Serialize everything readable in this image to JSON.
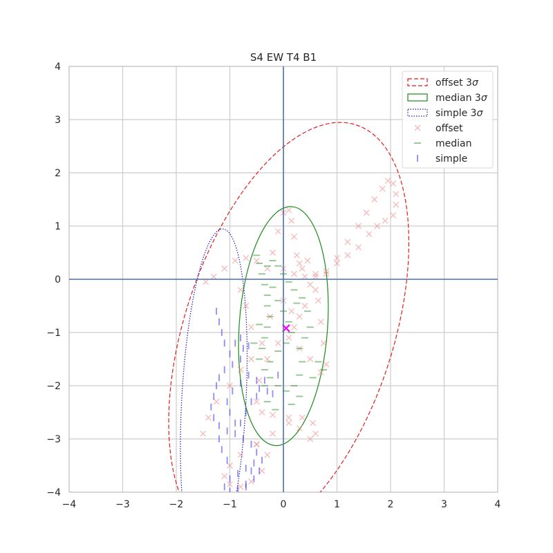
{
  "chart_data": {
    "type": "scatter",
    "title": "S4 EW T4 B1",
    "xlabel": "",
    "ylabel": "",
    "xlim": [
      -4,
      4
    ],
    "ylim": [
      -4,
      4
    ],
    "xticks": [
      -4,
      -3,
      -2,
      -1,
      0,
      1,
      2,
      3,
      4
    ],
    "yticks": [
      -4,
      -3,
      -2,
      -1,
      0,
      1,
      2,
      3,
      4
    ],
    "grid": true,
    "legend_position": "top-right",
    "axis_lines": {
      "x": 0,
      "y": 0,
      "color": "#4c72b0"
    },
    "ellipses": [
      {
        "name": "offset 3σ",
        "legend_label": "offset 3",
        "center": [
          0.1,
          -1.0
        ],
        "width": 3.9,
        "height": 8.2,
        "angle_deg": -18,
        "color": "#e41a1c",
        "style": "dashed"
      },
      {
        "name": "median 3σ",
        "legend_label": "median 3",
        "center": [
          0.0,
          -0.88
        ],
        "width": 1.65,
        "height": 4.5,
        "angle_deg": -4,
        "color": "#1a8a1a",
        "style": "solid"
      },
      {
        "name": "simple 3σ",
        "legend_label": "simple 3",
        "center": [
          -1.3,
          -2.3
        ],
        "width": 1.2,
        "height": 6.5,
        "angle_deg": -3,
        "color": "#1a1ab0",
        "style": "dotted"
      }
    ],
    "series": [
      {
        "name": "offset",
        "marker": "x",
        "color": "#f08080",
        "points": [
          [
            -1.45,
            -0.05
          ],
          [
            -1.3,
            0.05
          ],
          [
            -1.1,
            0.2
          ],
          [
            -0.9,
            0.35
          ],
          [
            -0.7,
            0.4
          ],
          [
            -0.5,
            0.35
          ],
          [
            -0.3,
            0.2
          ],
          [
            -0.2,
            0.5
          ],
          [
            -0.1,
            0.9
          ],
          [
            0.0,
            1.25
          ],
          [
            0.1,
            1.3
          ],
          [
            0.15,
            1.1
          ],
          [
            0.2,
            0.8
          ],
          [
            0.25,
            0.45
          ],
          [
            0.35,
            0.2
          ],
          [
            0.5,
            -0.1
          ],
          [
            0.65,
            -0.4
          ],
          [
            0.7,
            -0.8
          ],
          [
            0.75,
            -1.2
          ],
          [
            0.8,
            -1.6
          ],
          [
            0.7,
            -1.75
          ],
          [
            0.5,
            -1.5
          ],
          [
            0.3,
            -1.3
          ],
          [
            0.1,
            -1.1
          ],
          [
            -0.1,
            -1.2
          ],
          [
            -0.3,
            -1.5
          ],
          [
            -0.45,
            -1.9
          ],
          [
            -0.5,
            -2.3
          ],
          [
            -0.4,
            -2.5
          ],
          [
            -0.2,
            -2.55
          ],
          [
            0.1,
            -2.6
          ],
          [
            0.35,
            -2.6
          ],
          [
            0.55,
            -2.7
          ],
          [
            0.6,
            -2.9
          ],
          [
            0.5,
            -3.0
          ],
          [
            0.3,
            -2.8
          ],
          [
            0.1,
            -2.7
          ],
          [
            -0.2,
            -2.9
          ],
          [
            -0.5,
            -3.1
          ],
          [
            -0.8,
            -3.3
          ],
          [
            -1.0,
            -3.5
          ],
          [
            -1.1,
            -3.7
          ],
          [
            -1.0,
            -3.85
          ],
          [
            -0.8,
            -3.9
          ],
          [
            -0.6,
            -3.8
          ],
          [
            -0.4,
            -3.6
          ],
          [
            -0.3,
            -3.3
          ],
          [
            -0.5,
            -3.1
          ],
          [
            -1.5,
            -2.9
          ],
          [
            -1.4,
            -2.6
          ],
          [
            -1.25,
            -2.3
          ],
          [
            -1.0,
            -2.0
          ],
          [
            -0.8,
            -1.7
          ],
          [
            -0.6,
            -1.5
          ],
          [
            -0.4,
            -1.2
          ],
          [
            0.0,
            0.2
          ],
          [
            0.2,
            0.1
          ],
          [
            0.4,
            0.05
          ],
          [
            0.6,
            0.1
          ],
          [
            0.8,
            0.15
          ],
          [
            1.0,
            0.3
          ],
          [
            1.2,
            0.45
          ],
          [
            1.4,
            0.6
          ],
          [
            1.6,
            0.85
          ],
          [
            1.75,
            1.0
          ],
          [
            1.9,
            1.1
          ],
          [
            2.05,
            1.2
          ],
          [
            2.1,
            1.4
          ],
          [
            2.1,
            1.6
          ],
          [
            2.05,
            1.8
          ],
          [
            1.95,
            1.85
          ],
          [
            1.85,
            1.7
          ],
          [
            1.7,
            1.5
          ],
          [
            1.55,
            1.25
          ],
          [
            1.4,
            1.0
          ],
          [
            1.2,
            0.7
          ],
          [
            1.0,
            0.4
          ],
          [
            0.8,
            0.1
          ],
          [
            0.6,
            -0.2
          ],
          [
            0.4,
            -0.5
          ],
          [
            0.3,
            -0.7
          ],
          [
            0.2,
            -0.9
          ],
          [
            0.3,
            0.3
          ],
          [
            0.45,
            0.35
          ],
          [
            0.6,
            0.05
          ],
          [
            -0.6,
            -0.9
          ],
          [
            -0.7,
            -0.5
          ],
          [
            -0.8,
            -0.2
          ],
          [
            0.0,
            -0.4
          ],
          [
            0.15,
            -0.6
          ],
          [
            -0.25,
            -0.7
          ],
          [
            0.05,
            -0.92
          ]
        ]
      },
      {
        "name": "median",
        "marker": "_",
        "color": "#3a9a3a",
        "points": [
          [
            -0.5,
            0.45
          ],
          [
            -0.45,
            0.3
          ],
          [
            -0.4,
            0.1
          ],
          [
            -0.35,
            -0.1
          ],
          [
            -0.3,
            -0.3
          ],
          [
            -0.3,
            -0.5
          ],
          [
            -0.25,
            -0.7
          ],
          [
            -0.3,
            -0.9
          ],
          [
            -0.35,
            -1.1
          ],
          [
            -0.4,
            -1.3
          ],
          [
            -0.45,
            -1.5
          ],
          [
            -0.35,
            -1.7
          ],
          [
            -0.25,
            -1.85
          ],
          [
            -0.1,
            -2.0
          ],
          [
            0.05,
            -2.1
          ],
          [
            0.2,
            -2.0
          ],
          [
            0.3,
            -1.8
          ],
          [
            0.35,
            -1.55
          ],
          [
            0.3,
            -1.3
          ],
          [
            0.4,
            -1.1
          ],
          [
            0.5,
            -0.9
          ],
          [
            0.45,
            -0.6
          ],
          [
            0.35,
            -0.35
          ],
          [
            0.2,
            -0.2
          ],
          [
            0.1,
            -0.05
          ],
          [
            0.0,
            0.1
          ],
          [
            -0.1,
            0.25
          ],
          [
            -0.2,
            0.35
          ],
          [
            -0.3,
            0.25
          ],
          [
            -0.2,
            -0.15
          ],
          [
            -0.1,
            -0.4
          ],
          [
            0.0,
            -0.6
          ],
          [
            0.1,
            -0.8
          ],
          [
            0.15,
            -1.0
          ],
          [
            0.05,
            -1.2
          ],
          [
            -0.1,
            -1.35
          ],
          [
            -0.25,
            -1.55
          ],
          [
            -0.35,
            -2.0
          ],
          [
            -0.3,
            -2.3
          ],
          [
            -0.15,
            -2.45
          ],
          [
            0.15,
            -2.35
          ],
          [
            0.3,
            -2.2
          ],
          [
            0.55,
            -1.85
          ],
          [
            0.65,
            -1.55
          ],
          [
            0.75,
            -1.7
          ],
          [
            0.25,
            -0.45
          ],
          [
            -0.45,
            -0.85
          ],
          [
            -0.55,
            -1.2
          ]
        ]
      },
      {
        "name": "simple",
        "marker": "|",
        "color": "#3a3ae8",
        "points": [
          [
            -1.25,
            -0.6
          ],
          [
            -1.2,
            -0.8
          ],
          [
            -1.15,
            -1.0
          ],
          [
            -1.1,
            -1.2
          ],
          [
            -1.0,
            -1.4
          ],
          [
            -0.9,
            -1.2
          ],
          [
            -0.8,
            -1.1
          ],
          [
            -0.75,
            -1.3
          ],
          [
            -0.8,
            -1.5
          ],
          [
            -0.95,
            -1.6
          ],
          [
            -1.1,
            -1.7
          ],
          [
            -1.2,
            -1.85
          ],
          [
            -1.25,
            -2.0
          ],
          [
            -1.3,
            -2.2
          ],
          [
            -1.35,
            -2.4
          ],
          [
            -1.3,
            -2.6
          ],
          [
            -1.2,
            -2.75
          ],
          [
            -1.05,
            -2.85
          ],
          [
            -0.9,
            -2.9
          ],
          [
            -0.8,
            -2.7
          ],
          [
            -0.7,
            -2.5
          ],
          [
            -0.6,
            -2.3
          ],
          [
            -0.5,
            -2.2
          ],
          [
            -0.45,
            -2.05
          ],
          [
            -0.5,
            -1.9
          ],
          [
            -0.65,
            -1.8
          ],
          [
            -0.8,
            -1.95
          ],
          [
            -0.95,
            -2.1
          ],
          [
            -1.05,
            -2.3
          ],
          [
            -1.0,
            -2.5
          ],
          [
            -0.9,
            -2.7
          ],
          [
            -0.75,
            -3.0
          ],
          [
            -0.6,
            -3.1
          ],
          [
            -0.5,
            -3.25
          ],
          [
            -0.55,
            -3.45
          ],
          [
            -0.7,
            -3.55
          ],
          [
            -0.85,
            -3.65
          ],
          [
            -1.0,
            -3.75
          ],
          [
            -1.1,
            -3.9
          ],
          [
            -1.0,
            -3.98
          ],
          [
            -0.85,
            -3.95
          ],
          [
            -0.7,
            -3.85
          ],
          [
            -0.55,
            -3.75
          ],
          [
            -0.45,
            -3.6
          ],
          [
            -0.4,
            -3.4
          ],
          [
            -0.6,
            -3.6
          ],
          [
            -1.05,
            -3.4
          ],
          [
            -1.15,
            -3.2
          ],
          [
            -1.2,
            -3.0
          ],
          [
            -0.35,
            -1.9
          ],
          [
            -0.3,
            -2.1
          ],
          [
            -0.2,
            -2.15
          ],
          [
            -0.1,
            -1.8
          ],
          [
            -0.65,
            -1.25
          ],
          [
            -0.7,
            -3.9
          ]
        ]
      }
    ],
    "center_marker": {
      "x": 0.05,
      "y": -0.92,
      "color": "#ff00ff",
      "marker": "x"
    },
    "legend": {
      "position": "top-right",
      "entries": [
        {
          "label": "offset 3",
          "sigma": "σ",
          "kind": "ellipse",
          "color": "#e41a1c",
          "style": "dashed"
        },
        {
          "label": "median 3",
          "sigma": "σ",
          "kind": "ellipse",
          "color": "#1a8a1a",
          "style": "solid"
        },
        {
          "label": "simple 3",
          "sigma": "σ",
          "kind": "ellipse",
          "color": "#1a1ab0",
          "style": "dotted"
        },
        {
          "label": "offset",
          "sigma": "",
          "kind": "x",
          "color": "#f08080",
          "style": ""
        },
        {
          "label": "median",
          "sigma": "",
          "kind": "_",
          "color": "#3a9a3a",
          "style": ""
        },
        {
          "label": "simple",
          "sigma": "",
          "kind": "|",
          "color": "#3a3ae8",
          "style": ""
        }
      ]
    }
  }
}
